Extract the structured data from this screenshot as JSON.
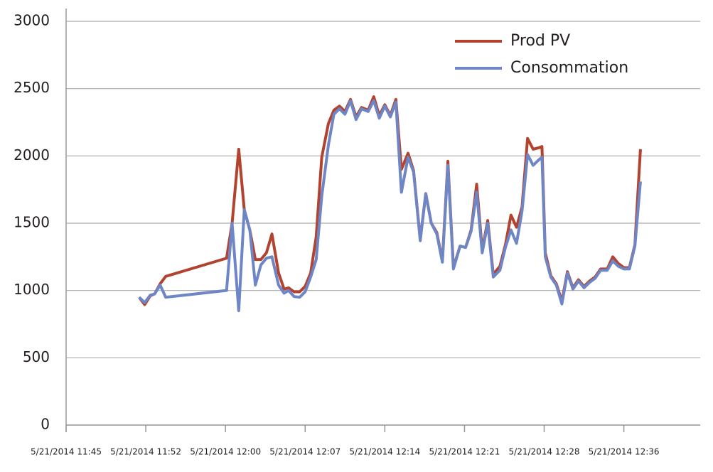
{
  "chart_data": {
    "type": "line",
    "x": [
      712.1,
      712.6,
      713.1,
      713.5,
      714.0,
      714.5,
      720.0,
      720.5,
      721.1,
      721.6,
      722.1,
      722.6,
      723.1,
      723.6,
      724.1,
      724.7,
      725.2,
      725.6,
      726.1,
      726.6,
      727.1,
      727.6,
      728.1,
      728.6,
      729.2,
      729.7,
      730.2,
      730.7,
      731.2,
      731.7,
      732.2,
      732.8,
      733.3,
      733.8,
      734.3,
      734.8,
      735.3,
      735.8,
      736.4,
      736.9,
      737.5,
      738.0,
      738.5,
      739.0,
      739.5,
      740.0,
      740.5,
      741.1,
      741.6,
      742.1,
      742.6,
      743.1,
      743.6,
      744.1,
      744.7,
      745.2,
      745.7,
      746.2,
      746.7,
      747.2,
      747.7,
      748.2,
      748.5,
      748.8,
      749.3,
      749.8,
      750.3,
      750.8,
      751.3,
      751.8,
      752.3,
      752.8,
      753.3,
      753.8,
      754.4,
      754.9,
      755.4,
      755.9,
      756.4,
      756.9,
      757.4
    ],
    "series": [
      {
        "name": "Prod PV",
        "color": "#b2432f",
        "values": [
          950,
          895,
          960,
          975,
          1050,
          1105,
          1240,
          1500,
          2050,
          1600,
          1450,
          1230,
          1230,
          1280,
          1420,
          1130,
          1010,
          1020,
          990,
          990,
          1030,
          1130,
          1400,
          1990,
          2240,
          2340,
          2370,
          2330,
          2420,
          2290,
          2360,
          2340,
          2440,
          2300,
          2380,
          2300,
          2420,
          1900,
          2020,
          1890,
          1380,
          1720,
          1500,
          1430,
          1220,
          1960,
          1170,
          1330,
          1320,
          1450,
          1790,
          1300,
          1520,
          1120,
          1180,
          1340,
          1560,
          1470,
          1620,
          2130,
          2050,
          2060,
          2070,
          1280,
          1110,
          1050,
          920,
          1140,
          1020,
          1080,
          1030,
          1070,
          1100,
          1160,
          1160,
          1250,
          1200,
          1170,
          1170,
          1340,
          2050
        ]
      },
      {
        "name": "Consommation",
        "color": "#6f86c6",
        "values": [
          950,
          910,
          965,
          975,
          1040,
          950,
          1000,
          1500,
          850,
          1600,
          1450,
          1040,
          1190,
          1240,
          1250,
          1040,
          980,
          1000,
          955,
          950,
          990,
          1100,
          1230,
          1700,
          2080,
          2310,
          2350,
          2310,
          2410,
          2270,
          2350,
          2330,
          2410,
          2280,
          2370,
          2290,
          2400,
          1730,
          1990,
          1880,
          1370,
          1720,
          1500,
          1420,
          1210,
          1930,
          1160,
          1330,
          1320,
          1440,
          1730,
          1280,
          1500,
          1100,
          1150,
          1320,
          1450,
          1350,
          1590,
          2010,
          1930,
          1970,
          1990,
          1250,
          1100,
          1040,
          900,
          1130,
          1010,
          1070,
          1020,
          1060,
          1090,
          1150,
          1150,
          1220,
          1180,
          1160,
          1160,
          1330,
          1810
        ]
      }
    ],
    "xlim": [
      705.5,
      762.8
    ],
    "xticks": [
      {
        "value": 705.5,
        "label": "5/21/2014 11:45"
      },
      {
        "value": 712.7,
        "label": "5/21/2014 11:52"
      },
      {
        "value": 719.9,
        "label": "5/21/2014 12:00"
      },
      {
        "value": 727.1,
        "label": "5/21/2014 12:07"
      },
      {
        "value": 734.3,
        "label": "5/21/2014 12:14"
      },
      {
        "value": 741.5,
        "label": "5/21/2014 12:21"
      },
      {
        "value": 748.7,
        "label": "5/21/2014 12:28"
      },
      {
        "value": 755.9,
        "label": "5/21/2014 12:36"
      }
    ],
    "ylim": [
      0,
      3000
    ],
    "yticks": [
      0,
      500,
      1000,
      1500,
      2000,
      2500,
      3000
    ],
    "grid": true,
    "legend": "top-right"
  }
}
